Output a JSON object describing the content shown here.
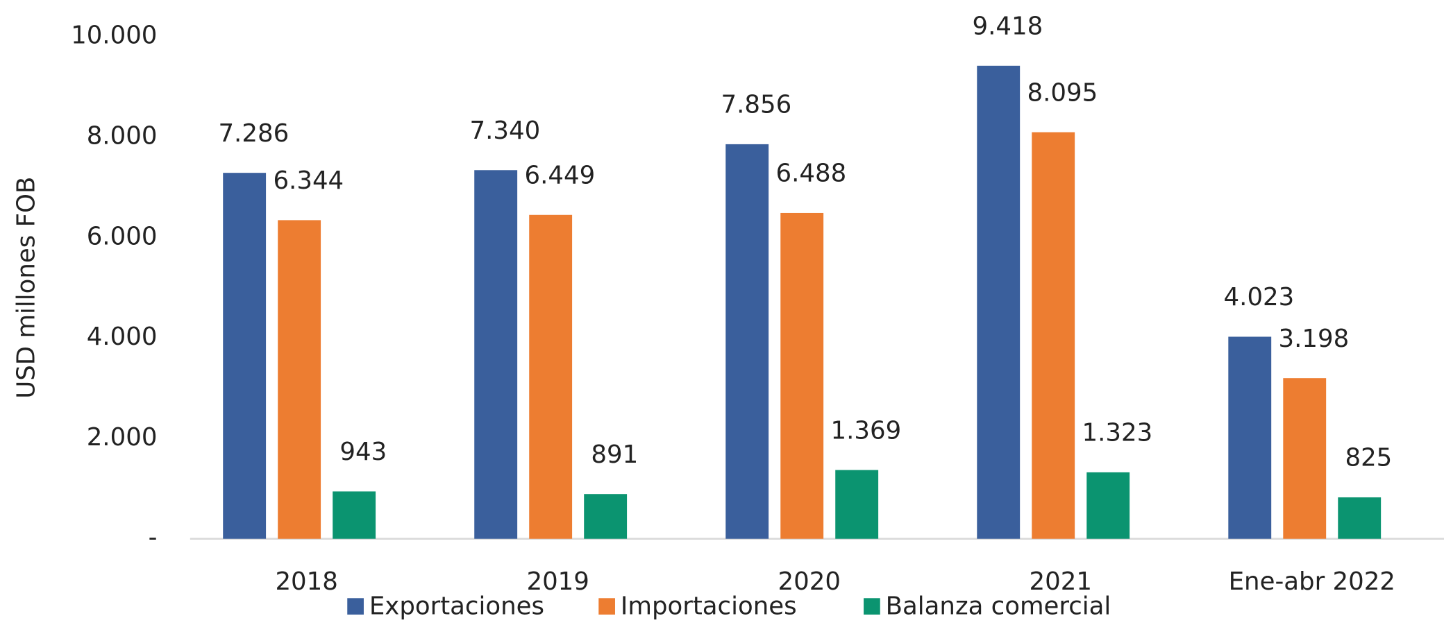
{
  "chart_data": {
    "type": "bar",
    "y_label": "USD millones FOB",
    "categories": [
      "2018",
      "2019",
      "2020",
      "2021",
      "Ene-abr 2022"
    ],
    "series": [
      {
        "name": "Exportaciones",
        "color": "#3a5f9c",
        "values": [
          7286,
          7340,
          7856,
          9418,
          4023
        ],
        "value_labels": [
          "7.286",
          "7.340",
          "7.856",
          "9.418",
          "4.023"
        ]
      },
      {
        "name": "Importaciones",
        "color": "#ed7d31",
        "values": [
          6344,
          6449,
          6488,
          8095,
          3198
        ],
        "value_labels": [
          "6.344",
          "6.449",
          "6.488",
          "8.095",
          "3.198"
        ]
      },
      {
        "name": "Balanza comercial",
        "color": "#0b9470",
        "values": [
          943,
          891,
          1369,
          1323,
          825
        ],
        "value_labels": [
          "943",
          "891",
          "1.369",
          "1.323",
          "825"
        ]
      }
    ],
    "ylim": [
      0,
      10000
    ],
    "yticks": [
      {
        "value": 0,
        "label": "-"
      },
      {
        "value": 2000,
        "label": "2.000"
      },
      {
        "value": 4000,
        "label": "4.000"
      },
      {
        "value": 6000,
        "label": "6.000"
      },
      {
        "value": 8000,
        "label": "8.000"
      },
      {
        "value": 10000,
        "label": "10.000"
      }
    ],
    "grid": false,
    "legend": "bottom"
  }
}
